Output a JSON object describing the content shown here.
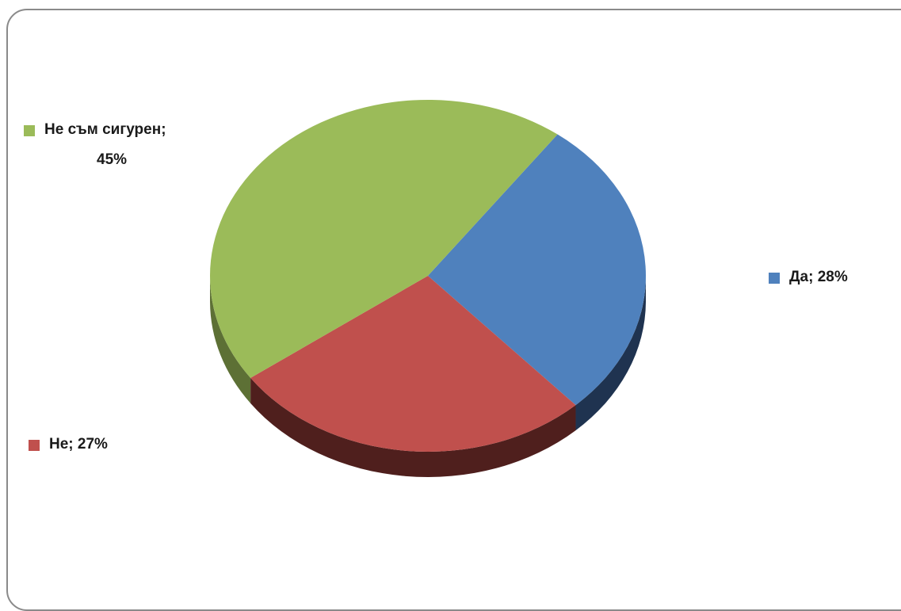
{
  "chart_data": {
    "type": "pie",
    "title": "",
    "slices": [
      {
        "label": "Да",
        "value": 28,
        "display": "Да; 28%",
        "color": "#4f81bd",
        "side_color": "#1f3350"
      },
      {
        "label": "Не",
        "value": 27,
        "display": "Не; 27%",
        "color": "#c0504d",
        "side_color": "#4f1f1d"
      },
      {
        "label": "Не съм сигурен",
        "value": 45,
        "display_line1": "Не съм сигурен;",
        "display_line2": "45%",
        "color": "#9bbb59",
        "side_color": "#5d7035"
      }
    ],
    "unit": "%"
  }
}
